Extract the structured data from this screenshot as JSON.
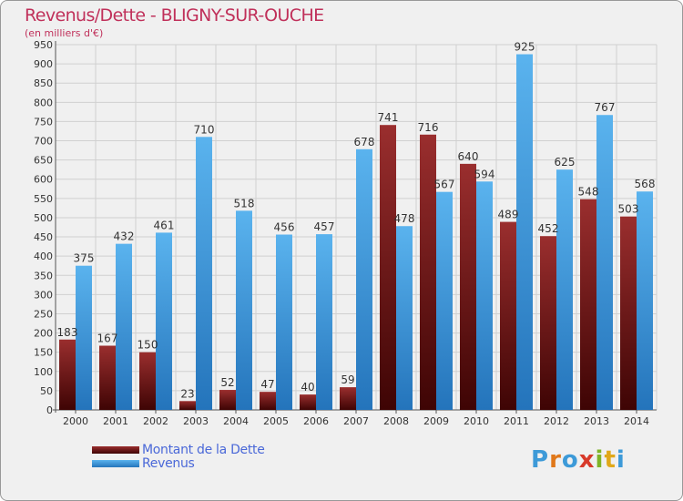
{
  "header": {
    "title": "Revenus/Dette - BLIGNY-SUR-OUCHE",
    "subtitle": "(en milliers d'€)"
  },
  "legend": {
    "dette_label": "Montant de la Dette",
    "revenus_label": "Revenus"
  },
  "logo": {
    "text": "Proxiti"
  },
  "colors": {
    "dette": "#6e1a1a",
    "revenus": "#3d9ad8",
    "title": "#c0305a",
    "legend_text": "#4a68d8"
  },
  "chart_data": {
    "type": "bar",
    "title": "Revenus/Dette - BLIGNY-SUR-OUCHE",
    "ylabel": "(en milliers d'€)",
    "xlabel": "",
    "categories": [
      "2000",
      "2001",
      "2002",
      "2003",
      "2004",
      "2005",
      "2006",
      "2007",
      "2008",
      "2009",
      "2010",
      "2011",
      "2012",
      "2013",
      "2014"
    ],
    "series": [
      {
        "name": "Montant de la Dette",
        "values": [
          183,
          167,
          150,
          23,
          52,
          47,
          40,
          59,
          741,
          716,
          640,
          489,
          452,
          548,
          503
        ]
      },
      {
        "name": "Revenus",
        "values": [
          375,
          432,
          461,
          710,
          518,
          456,
          457,
          678,
          478,
          567,
          594,
          925,
          625,
          767,
          568
        ]
      }
    ],
    "ylim": [
      0,
      950
    ],
    "yticks": [
      0,
      50,
      100,
      150,
      200,
      250,
      300,
      350,
      400,
      450,
      500,
      550,
      600,
      650,
      700,
      750,
      800,
      850,
      900,
      950
    ],
    "grid": true,
    "legend_position": "bottom-left"
  }
}
